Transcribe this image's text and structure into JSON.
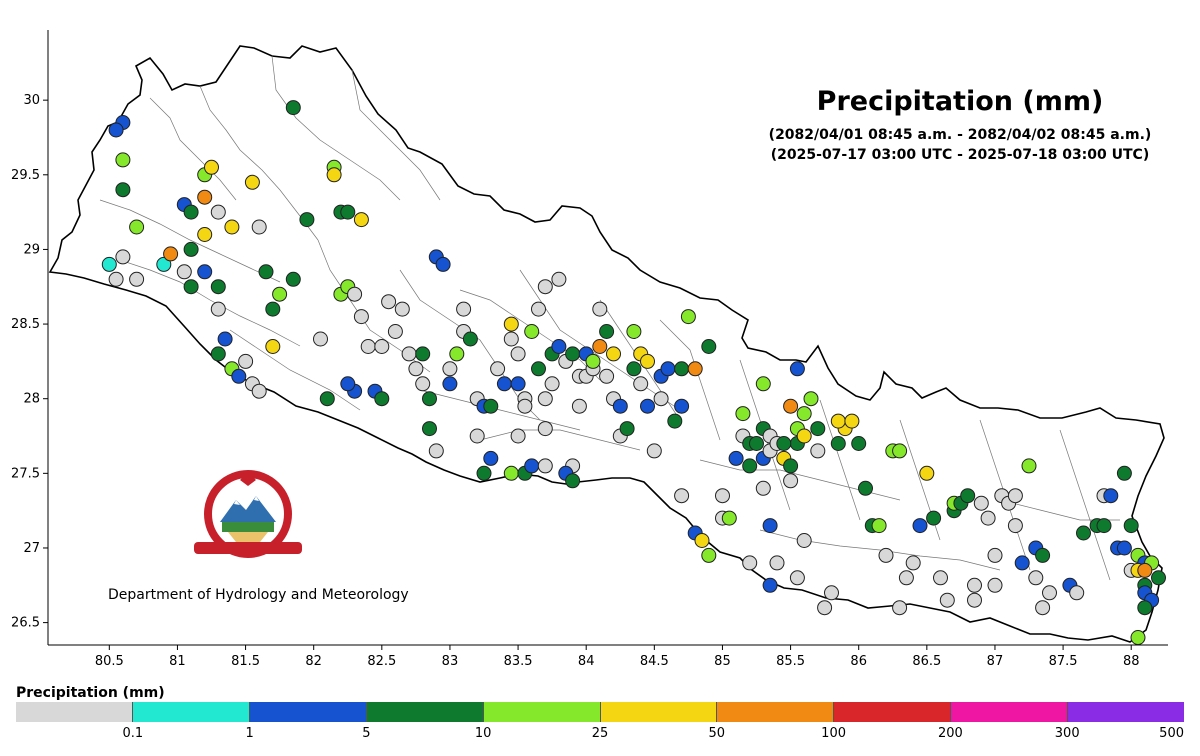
{
  "map": {
    "title": "Precipitation (mm)",
    "subtitle_nepali": "(2082/04/01 08:45 a.m. - 2082/04/02 08:45 a.m.)",
    "subtitle_utc": "(2025-07-17 03:00 UTC - 2025-07-18 03:00 UTC)",
    "x_ticks": [
      80.5,
      81,
      81.5,
      82,
      82.5,
      83,
      83.5,
      84,
      84.5,
      85,
      85.5,
      86,
      86.5,
      87,
      87.5,
      88
    ],
    "y_ticks": [
      26.5,
      27,
      27.5,
      28,
      28.5,
      29,
      29.5,
      30
    ],
    "xlim": [
      80.05,
      88.27
    ],
    "ylim": [
      26.35,
      30.47
    ],
    "department": "Department of Hydrology and Meteorology"
  },
  "legend": {
    "title": "Precipitation (mm)",
    "labels": [
      "0.1",
      "1",
      "5",
      "10",
      "25",
      "50",
      "100",
      "200",
      "300",
      "500"
    ],
    "colors": [
      "#d8d8d8",
      "#22e8d2",
      "#1553d0",
      "#0d7a2e",
      "#86e82a",
      "#f5d612",
      "#f08a12",
      "#d8262a",
      "#ef16a4",
      "#8a2be6"
    ]
  },
  "stations": [
    [
      80.5,
      28.9,
      1
    ],
    [
      80.6,
      29.85,
      2
    ],
    [
      80.6,
      29.6,
      4
    ],
    [
      80.6,
      29.4,
      3
    ],
    [
      80.7,
      29.15,
      4
    ],
    [
      80.55,
      29.8,
      2
    ],
    [
      80.6,
      28.95,
      0
    ],
    [
      80.7,
      28.8,
      0
    ],
    [
      80.55,
      28.8,
      0
    ],
    [
      80.9,
      28.9,
      1
    ],
    [
      80.95,
      28.97,
      6
    ],
    [
      81.05,
      28.85,
      0
    ],
    [
      81.1,
      28.75,
      3
    ],
    [
      81.05,
      29.3,
      2
    ],
    [
      81.1,
      29.25,
      3
    ],
    [
      81.2,
      29.35,
      6
    ],
    [
      81.2,
      29.5,
      4
    ],
    [
      81.25,
      29.55,
      5
    ],
    [
      81.3,
      29.25,
      0
    ],
    [
      81.2,
      29.1,
      5
    ],
    [
      81.4,
      29.15,
      5
    ],
    [
      81.1,
      29.0,
      3
    ],
    [
      81.2,
      28.85,
      2
    ],
    [
      81.3,
      28.75,
      3
    ],
    [
      81.3,
      28.6,
      0
    ],
    [
      81.35,
      28.4,
      2
    ],
    [
      81.3,
      28.3,
      3
    ],
    [
      81.4,
      28.2,
      4
    ],
    [
      81.45,
      28.15,
      2
    ],
    [
      81.5,
      28.25,
      0
    ],
    [
      81.55,
      28.1,
      0
    ],
    [
      81.6,
      28.05,
      0
    ],
    [
      81.55,
      29.45,
      5
    ],
    [
      81.6,
      29.15,
      0
    ],
    [
      81.65,
      28.85,
      3
    ],
    [
      81.75,
      28.7,
      4
    ],
    [
      81.7,
      28.6,
      3
    ],
    [
      81.7,
      28.35,
      5
    ],
    [
      81.85,
      29.95,
      3
    ],
    [
      81.85,
      28.8,
      3
    ],
    [
      81.95,
      29.2,
      3
    ],
    [
      82.05,
      28.4,
      0
    ],
    [
      82.1,
      28.0,
      3
    ],
    [
      82.15,
      29.55,
      4
    ],
    [
      82.15,
      29.5,
      5
    ],
    [
      82.2,
      29.25,
      3
    ],
    [
      82.25,
      29.25,
      3
    ],
    [
      82.35,
      29.2,
      5
    ],
    [
      82.2,
      28.7,
      4
    ],
    [
      82.25,
      28.75,
      4
    ],
    [
      82.3,
      28.7,
      0
    ],
    [
      82.35,
      28.55,
      0
    ],
    [
      82.4,
      28.35,
      0
    ],
    [
      82.3,
      28.05,
      2
    ],
    [
      82.25,
      28.1,
      2
    ],
    [
      82.45,
      28.05,
      2
    ],
    [
      82.5,
      28.0,
      3
    ],
    [
      82.5,
      28.35,
      0
    ],
    [
      82.6,
      28.45,
      0
    ],
    [
      82.55,
      28.65,
      0
    ],
    [
      82.65,
      28.6,
      0
    ],
    [
      82.7,
      28.3,
      0
    ],
    [
      82.75,
      28.2,
      0
    ],
    [
      82.8,
      28.3,
      3
    ],
    [
      82.8,
      28.1,
      0
    ],
    [
      82.85,
      28.0,
      3
    ],
    [
      82.85,
      27.8,
      3
    ],
    [
      82.9,
      27.65,
      0
    ],
    [
      82.9,
      28.95,
      2
    ],
    [
      82.95,
      28.9,
      2
    ],
    [
      83.0,
      28.1,
      2
    ],
    [
      83.0,
      28.2,
      0
    ],
    [
      83.05,
      28.3,
      4
    ],
    [
      83.1,
      28.45,
      0
    ],
    [
      83.1,
      28.6,
      0
    ],
    [
      83.15,
      28.4,
      3
    ],
    [
      83.2,
      28.0,
      0
    ],
    [
      83.2,
      27.75,
      0
    ],
    [
      83.25,
      27.95,
      2
    ],
    [
      83.3,
      27.95,
      3
    ],
    [
      83.25,
      27.5,
      3
    ],
    [
      83.3,
      27.6,
      2
    ],
    [
      83.35,
      28.2,
      0
    ],
    [
      83.4,
      28.1,
      2
    ],
    [
      83.45,
      28.5,
      5
    ],
    [
      83.45,
      28.4,
      0
    ],
    [
      83.5,
      28.3,
      0
    ],
    [
      83.5,
      28.1,
      2
    ],
    [
      83.55,
      28.0,
      0
    ],
    [
      83.55,
      27.95,
      0
    ],
    [
      83.5,
      27.75,
      0
    ],
    [
      83.45,
      27.5,
      4
    ],
    [
      83.55,
      27.5,
      3
    ],
    [
      83.6,
      27.55,
      2
    ],
    [
      83.65,
      28.2,
      3
    ],
    [
      83.6,
      28.45,
      4
    ],
    [
      83.65,
      28.6,
      0
    ],
    [
      83.7,
      28.75,
      0
    ],
    [
      83.8,
      28.8,
      0
    ],
    [
      83.75,
      28.1,
      0
    ],
    [
      83.7,
      28.0,
      0
    ],
    [
      83.7,
      27.8,
      0
    ],
    [
      83.7,
      27.55,
      0
    ],
    [
      83.75,
      28.3,
      3
    ],
    [
      83.8,
      28.35,
      2
    ],
    [
      83.85,
      28.25,
      0
    ],
    [
      83.9,
      28.3,
      3
    ],
    [
      83.95,
      28.15,
      0
    ],
    [
      83.95,
      27.95,
      0
    ],
    [
      83.9,
      27.55,
      0
    ],
    [
      83.85,
      27.5,
      2
    ],
    [
      83.9,
      27.45,
      3
    ],
    [
      84.0,
      28.3,
      2
    ],
    [
      84.0,
      28.15,
      0
    ],
    [
      84.05,
      28.2,
      0
    ],
    [
      84.1,
      28.35,
      6
    ],
    [
      84.05,
      28.25,
      4
    ],
    [
      84.1,
      28.6,
      0
    ],
    [
      84.15,
      28.45,
      3
    ],
    [
      84.2,
      28.3,
      5
    ],
    [
      84.15,
      28.15,
      0
    ],
    [
      84.2,
      28.0,
      0
    ],
    [
      84.25,
      27.95,
      2
    ],
    [
      84.25,
      27.75,
      0
    ],
    [
      84.3,
      27.8,
      3
    ],
    [
      84.35,
      28.2,
      3
    ],
    [
      84.35,
      28.45,
      4
    ],
    [
      84.4,
      28.3,
      5
    ],
    [
      84.45,
      28.25,
      5
    ],
    [
      84.4,
      28.1,
      0
    ],
    [
      84.45,
      27.95,
      2
    ],
    [
      84.5,
      27.65,
      0
    ],
    [
      84.55,
      28.0,
      0
    ],
    [
      84.55,
      28.15,
      2
    ],
    [
      84.6,
      28.2,
      2
    ],
    [
      84.65,
      27.85,
      3
    ],
    [
      84.7,
      27.95,
      2
    ],
    [
      84.7,
      28.2,
      3
    ],
    [
      84.75,
      28.55,
      4
    ],
    [
      84.8,
      28.2,
      6
    ],
    [
      84.9,
      28.35,
      3
    ],
    [
      84.7,
      27.35,
      0
    ],
    [
      84.8,
      27.1,
      2
    ],
    [
      84.85,
      27.05,
      5
    ],
    [
      84.9,
      26.95,
      4
    ],
    [
      85.0,
      27.2,
      0
    ],
    [
      85.0,
      27.35,
      0
    ],
    [
      85.05,
      27.2,
      4
    ],
    [
      85.1,
      27.6,
      2
    ],
    [
      85.15,
      27.75,
      0
    ],
    [
      85.15,
      27.9,
      4
    ],
    [
      85.2,
      27.7,
      3
    ],
    [
      85.2,
      27.55,
      3
    ],
    [
      85.25,
      27.7,
      3
    ],
    [
      85.3,
      27.8,
      3
    ],
    [
      85.3,
      27.6,
      2
    ],
    [
      85.3,
      28.1,
      4
    ],
    [
      85.35,
      27.75,
      0
    ],
    [
      85.35,
      27.65,
      0
    ],
    [
      85.4,
      27.7,
      0
    ],
    [
      85.45,
      27.6,
      5
    ],
    [
      85.5,
      27.55,
      3
    ],
    [
      85.55,
      27.7,
      3
    ],
    [
      85.55,
      27.8,
      4
    ],
    [
      85.6,
      27.9,
      4
    ],
    [
      85.6,
      27.75,
      5
    ],
    [
      85.65,
      28.0,
      4
    ],
    [
      85.7,
      27.65,
      0
    ],
    [
      85.7,
      27.8,
      3
    ],
    [
      85.55,
      28.2,
      2
    ],
    [
      85.5,
      27.95,
      6
    ],
    [
      85.45,
      27.7,
      3
    ],
    [
      85.35,
      27.15,
      2
    ],
    [
      85.4,
      26.9,
      0
    ],
    [
      85.35,
      26.75,
      2
    ],
    [
      85.55,
      26.8,
      0
    ],
    [
      85.6,
      27.05,
      0
    ],
    [
      85.75,
      26.6,
      0
    ],
    [
      85.8,
      26.7,
      0
    ],
    [
      85.85,
      27.7,
      3
    ],
    [
      85.9,
      27.8,
      5
    ],
    [
      85.85,
      27.85,
      5
    ],
    [
      85.95,
      27.85,
      5
    ],
    [
      86.0,
      27.7,
      3
    ],
    [
      86.05,
      27.4,
      3
    ],
    [
      86.1,
      27.15,
      3
    ],
    [
      86.15,
      27.15,
      4
    ],
    [
      86.2,
      26.95,
      0
    ],
    [
      86.25,
      27.65,
      4
    ],
    [
      86.3,
      27.65,
      4
    ],
    [
      86.3,
      26.6,
      0
    ],
    [
      86.35,
      26.8,
      0
    ],
    [
      86.4,
      26.9,
      0
    ],
    [
      86.45,
      27.15,
      2
    ],
    [
      86.5,
      27.5,
      5
    ],
    [
      86.55,
      27.2,
      3
    ],
    [
      86.6,
      26.8,
      0
    ],
    [
      86.65,
      26.65,
      0
    ],
    [
      86.7,
      27.25,
      3
    ],
    [
      86.7,
      27.3,
      4
    ],
    [
      86.75,
      27.3,
      3
    ],
    [
      86.8,
      27.35,
      3
    ],
    [
      86.85,
      26.75,
      0
    ],
    [
      86.85,
      26.65,
      0
    ],
    [
      86.9,
      27.3,
      0
    ],
    [
      86.95,
      27.2,
      0
    ],
    [
      87.0,
      26.95,
      0
    ],
    [
      87.0,
      26.75,
      0
    ],
    [
      87.05,
      27.35,
      0
    ],
    [
      87.1,
      27.3,
      0
    ],
    [
      87.15,
      27.35,
      0
    ],
    [
      87.15,
      27.15,
      0
    ],
    [
      87.2,
      26.9,
      2
    ],
    [
      87.25,
      27.55,
      4
    ],
    [
      87.3,
      27.0,
      2
    ],
    [
      87.35,
      26.95,
      3
    ],
    [
      87.3,
      26.8,
      0
    ],
    [
      87.35,
      26.6,
      0
    ],
    [
      87.4,
      26.7,
      0
    ],
    [
      87.55,
      26.75,
      2
    ],
    [
      87.6,
      26.7,
      0
    ],
    [
      87.65,
      27.1,
      3
    ],
    [
      87.75,
      27.15,
      3
    ],
    [
      87.8,
      27.15,
      3
    ],
    [
      87.8,
      27.35,
      0
    ],
    [
      87.85,
      27.35,
      2
    ],
    [
      87.9,
      27.0,
      2
    ],
    [
      87.95,
      27.0,
      2
    ],
    [
      87.95,
      27.5,
      3
    ],
    [
      88.0,
      26.85,
      0
    ],
    [
      88.0,
      27.15,
      3
    ],
    [
      88.05,
      26.95,
      4
    ],
    [
      88.1,
      26.9,
      2
    ],
    [
      88.05,
      26.85,
      5
    ],
    [
      88.1,
      26.75,
      3
    ],
    [
      88.1,
      26.7,
      2
    ],
    [
      88.15,
      26.65,
      2
    ],
    [
      88.2,
      26.8,
      3
    ],
    [
      88.15,
      26.9,
      4
    ],
    [
      88.1,
      26.6,
      3
    ],
    [
      88.05,
      26.4,
      4
    ],
    [
      88.1,
      26.85,
      6
    ],
    [
      85.3,
      27.4,
      0
    ],
    [
      85.5,
      27.45,
      0
    ],
    [
      85.2,
      26.9,
      0
    ]
  ]
}
